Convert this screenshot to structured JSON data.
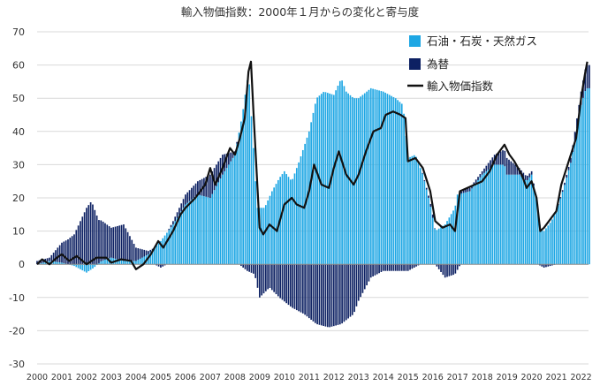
{
  "chart_data": {
    "type": "bar",
    "stacked": true,
    "title": "輸入物価指数：2000年１月からの変化と寄与度",
    "xlabel": "",
    "ylabel": "",
    "ylim": [
      -30,
      70
    ],
    "yticks": [
      -30,
      -20,
      -10,
      0,
      10,
      20,
      30,
      40,
      50,
      60,
      70
    ],
    "xticks": [
      "2000",
      "2001",
      "2002",
      "2003",
      "2004",
      "2005",
      "2006",
      "2007",
      "2008",
      "2009",
      "2010",
      "2011",
      "2012",
      "2013",
      "2014",
      "2015",
      "2016",
      "2017",
      "2018",
      "2019",
      "2020",
      "2021",
      "2022"
    ],
    "x_range": [
      2000.0,
      2022.3
    ],
    "grid": true,
    "legend_position": "top-right",
    "colors": {
      "oil": "#1ea7e4",
      "fx": "#0d2163",
      "index": "#111111",
      "grid": "#d9d9d9"
    },
    "series": [
      {
        "name": "石油・石炭・天然ガス",
        "kind": "bar",
        "color": "#1ea7e4",
        "keypoints": [
          [
            2000.0,
            0
          ],
          [
            2000.5,
            1
          ],
          [
            2001.0,
            0.5
          ],
          [
            2001.5,
            -0.5
          ],
          [
            2002.0,
            -2.5
          ],
          [
            2002.3,
            -1
          ],
          [
            2002.6,
            1
          ],
          [
            2003.0,
            2
          ],
          [
            2003.5,
            1
          ],
          [
            2004.0,
            1
          ],
          [
            2004.5,
            3
          ],
          [
            2005.0,
            7
          ],
          [
            2005.5,
            12
          ],
          [
            2006.0,
            18
          ],
          [
            2006.5,
            21
          ],
          [
            2007.0,
            20
          ],
          [
            2007.5,
            27
          ],
          [
            2008.0,
            33
          ],
          [
            2008.3,
            45
          ],
          [
            2008.55,
            58
          ],
          [
            2008.75,
            35
          ],
          [
            2008.9,
            17
          ],
          [
            2009.2,
            17
          ],
          [
            2009.5,
            22
          ],
          [
            2009.8,
            26
          ],
          [
            2010.0,
            28
          ],
          [
            2010.3,
            25
          ],
          [
            2010.6,
            31
          ],
          [
            2011.0,
            40
          ],
          [
            2011.3,
            50
          ],
          [
            2011.6,
            52
          ],
          [
            2012.0,
            51
          ],
          [
            2012.3,
            56
          ],
          [
            2012.5,
            52
          ],
          [
            2012.8,
            50
          ],
          [
            2013.0,
            50
          ],
          [
            2013.5,
            53
          ],
          [
            2014.0,
            52
          ],
          [
            2014.5,
            50
          ],
          [
            2014.8,
            48
          ],
          [
            2015.0,
            32
          ],
          [
            2015.3,
            33
          ],
          [
            2015.6,
            27
          ],
          [
            2015.9,
            18
          ],
          [
            2016.1,
            10
          ],
          [
            2016.5,
            12
          ],
          [
            2016.9,
            17
          ],
          [
            2017.0,
            21
          ],
          [
            2017.5,
            22
          ],
          [
            2018.0,
            27
          ],
          [
            2018.5,
            30
          ],
          [
            2018.9,
            30
          ],
          [
            2019.0,
            27
          ],
          [
            2019.5,
            27
          ],
          [
            2019.8,
            25
          ],
          [
            2020.0,
            27
          ],
          [
            2020.2,
            19
          ],
          [
            2020.35,
            11
          ],
          [
            2020.5,
            10
          ],
          [
            2020.8,
            13
          ],
          [
            2021.0,
            16
          ],
          [
            2021.3,
            23
          ],
          [
            2021.6,
            31
          ],
          [
            2022.0,
            48
          ],
          [
            2022.2,
            53
          ]
        ]
      },
      {
        "name": "為替",
        "kind": "bar",
        "color": "#0d2163",
        "keypoints": [
          [
            2000.0,
            1
          ],
          [
            2000.5,
            1
          ],
          [
            2001.0,
            6
          ],
          [
            2001.5,
            9
          ],
          [
            2002.0,
            17
          ],
          [
            2002.2,
            19
          ],
          [
            2002.5,
            13
          ],
          [
            2003.0,
            9
          ],
          [
            2003.5,
            11
          ],
          [
            2004.0,
            4
          ],
          [
            2004.5,
            1
          ],
          [
            2005.0,
            -1
          ],
          [
            2005.5,
            1
          ],
          [
            2006.0,
            3
          ],
          [
            2006.5,
            4
          ],
          [
            2007.0,
            7
          ],
          [
            2007.5,
            6
          ],
          [
            2008.0,
            1
          ],
          [
            2008.5,
            -2
          ],
          [
            2008.8,
            -3
          ],
          [
            2009.0,
            -10
          ],
          [
            2009.4,
            -7
          ],
          [
            2009.8,
            -10
          ],
          [
            2010.3,
            -13
          ],
          [
            2010.8,
            -15
          ],
          [
            2011.3,
            -18
          ],
          [
            2011.8,
            -19
          ],
          [
            2012.3,
            -18
          ],
          [
            2012.8,
            -15
          ],
          [
            2013.0,
            -11
          ],
          [
            2013.5,
            -4
          ],
          [
            2014.0,
            -2
          ],
          [
            2014.5,
            -2
          ],
          [
            2015.0,
            -2
          ],
          [
            2015.5,
            0
          ],
          [
            2016.0,
            1
          ],
          [
            2016.5,
            -4
          ],
          [
            2016.9,
            -3
          ],
          [
            2017.2,
            1
          ],
          [
            2017.6,
            1
          ],
          [
            2018.0,
            1
          ],
          [
            2018.5,
            3
          ],
          [
            2019.0,
            5
          ],
          [
            2019.5,
            2
          ],
          [
            2020.0,
            1
          ],
          [
            2020.5,
            -1
          ],
          [
            2021.0,
            0
          ],
          [
            2021.5,
            1
          ],
          [
            2022.0,
            4
          ],
          [
            2022.2,
            7
          ]
        ]
      },
      {
        "name": "輸入物価指数",
        "kind": "line",
        "color": "#111111",
        "points": [
          [
            2000.0,
            0
          ],
          [
            2000.2,
            1.5
          ],
          [
            2000.5,
            0
          ],
          [
            2000.8,
            2
          ],
          [
            2001.0,
            3
          ],
          [
            2001.3,
            1
          ],
          [
            2001.6,
            2.5
          ],
          [
            2002.0,
            0
          ],
          [
            2002.4,
            2
          ],
          [
            2002.8,
            2
          ],
          [
            2003.0,
            0.5
          ],
          [
            2003.4,
            1.5
          ],
          [
            2003.8,
            1
          ],
          [
            2004.0,
            -1.5
          ],
          [
            2004.3,
            0
          ],
          [
            2004.6,
            3
          ],
          [
            2004.9,
            7
          ],
          [
            2005.1,
            5
          ],
          [
            2005.5,
            10
          ],
          [
            2005.8,
            15
          ],
          [
            2006.0,
            17
          ],
          [
            2006.4,
            20
          ],
          [
            2006.8,
            24
          ],
          [
            2007.0,
            29
          ],
          [
            2007.2,
            24
          ],
          [
            2007.5,
            29
          ],
          [
            2007.8,
            35
          ],
          [
            2008.0,
            33
          ],
          [
            2008.2,
            38
          ],
          [
            2008.4,
            44
          ],
          [
            2008.55,
            58
          ],
          [
            2008.65,
            61
          ],
          [
            2008.75,
            46
          ],
          [
            2008.9,
            25
          ],
          [
            2009.0,
            11
          ],
          [
            2009.15,
            9
          ],
          [
            2009.4,
            12
          ],
          [
            2009.7,
            10
          ],
          [
            2010.0,
            18
          ],
          [
            2010.3,
            20
          ],
          [
            2010.5,
            18
          ],
          [
            2010.8,
            17
          ],
          [
            2011.0,
            22
          ],
          [
            2011.2,
            30
          ],
          [
            2011.5,
            24
          ],
          [
            2011.8,
            23
          ],
          [
            2012.0,
            29
          ],
          [
            2012.2,
            34
          ],
          [
            2012.5,
            27
          ],
          [
            2012.8,
            24
          ],
          [
            2013.0,
            27
          ],
          [
            2013.3,
            34
          ],
          [
            2013.6,
            40
          ],
          [
            2013.9,
            41
          ],
          [
            2014.1,
            45
          ],
          [
            2014.4,
            46
          ],
          [
            2014.7,
            45
          ],
          [
            2014.9,
            44
          ],
          [
            2015.0,
            31
          ],
          [
            2015.3,
            32
          ],
          [
            2015.6,
            29
          ],
          [
            2015.9,
            22
          ],
          [
            2016.1,
            13
          ],
          [
            2016.4,
            11
          ],
          [
            2016.7,
            12
          ],
          [
            2016.9,
            10
          ],
          [
            2017.1,
            22
          ],
          [
            2017.4,
            23
          ],
          [
            2017.7,
            24
          ],
          [
            2018.0,
            25
          ],
          [
            2018.3,
            28
          ],
          [
            2018.6,
            33
          ],
          [
            2018.9,
            36
          ],
          [
            2019.1,
            33
          ],
          [
            2019.3,
            31
          ],
          [
            2019.6,
            27
          ],
          [
            2019.8,
            23
          ],
          [
            2020.0,
            25
          ],
          [
            2020.2,
            20
          ],
          [
            2020.35,
            10
          ],
          [
            2020.5,
            11
          ],
          [
            2020.7,
            13
          ],
          [
            2021.0,
            16
          ],
          [
            2021.2,
            24
          ],
          [
            2021.5,
            31
          ],
          [
            2021.8,
            38
          ],
          [
            2022.0,
            50
          ],
          [
            2022.15,
            57
          ],
          [
            2022.25,
            61
          ]
        ]
      }
    ]
  }
}
